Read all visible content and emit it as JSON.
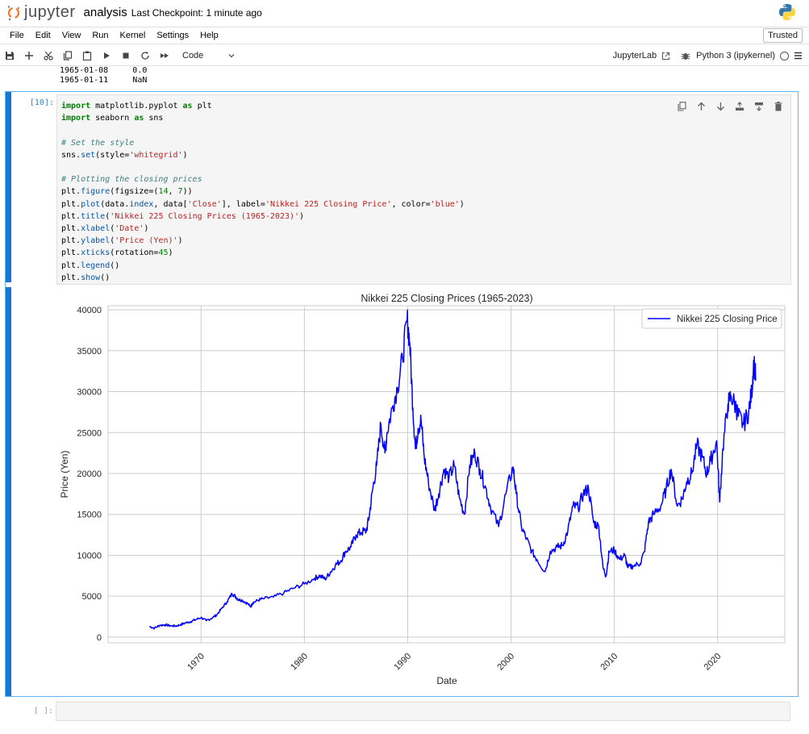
{
  "header": {
    "logo_text": "jupyter",
    "notebook_name": "analysis",
    "checkpoint": "Last Checkpoint: 1 minute ago",
    "python_logo": "python-logo-icon"
  },
  "menu": {
    "items": [
      "File",
      "Edit",
      "View",
      "Run",
      "Kernel",
      "Settings",
      "Help"
    ],
    "trusted": "Trusted"
  },
  "toolbar": {
    "icons": [
      "save-icon",
      "add-icon",
      "cut-icon",
      "copy-icon",
      "paste-icon",
      "run-icon",
      "stop-icon",
      "restart-icon",
      "fast-forward-icon"
    ],
    "cell_type": "Code",
    "jupyterlab": "JupyterLab",
    "kernel": "Python 3 (ipykernel)"
  },
  "prev_output": {
    "lines": [
      "1965-01-08     0.0",
      "1965-01-11     NaN"
    ]
  },
  "cell": {
    "prompt": "[10]:",
    "code_lines": [
      "import matplotlib.pyplot as plt",
      "import seaborn as sns",
      "",
      "# Set the style",
      "sns.set(style='whitegrid')",
      "",
      "# Plotting the closing prices",
      "plt.figure(figsize=(14, 7))",
      "plt.plot(data.index, data['Close'], label='Nikkei 225 Closing Price', color='blue')",
      "plt.title('Nikkei 225 Closing Prices (1965-2023)')",
      "plt.xlabel('Date')",
      "plt.ylabel('Price (Yen)')",
      "plt.xticks(rotation=45)",
      "plt.legend()",
      "plt.show()"
    ]
  },
  "empty_cell": {
    "prompt": "[ ]:"
  },
  "chart_data": {
    "type": "line",
    "title": "Nikkei 225 Closing Prices (1965-2023)",
    "xlabel": "Date",
    "ylabel": "Price (Yen)",
    "xlim": [
      1961,
      2026.5
    ],
    "ylim": [
      -700,
      40500
    ],
    "xticks": [
      1970,
      1980,
      1990,
      2000,
      2010,
      2020
    ],
    "yticks": [
      0,
      5000,
      10000,
      15000,
      20000,
      25000,
      30000,
      35000,
      40000
    ],
    "grid": true,
    "legend_position": "upper right",
    "color": "#0000ff",
    "series": [
      {
        "name": "Nikkei 225 Closing Price",
        "x": [
          1965.0,
          1965.5,
          1966.0,
          1966.5,
          1967.0,
          1967.5,
          1968.0,
          1968.5,
          1969.0,
          1969.5,
          1970.0,
          1970.5,
          1971.0,
          1971.5,
          1972.0,
          1972.5,
          1973.0,
          1973.3,
          1973.6,
          1974.0,
          1974.5,
          1974.8,
          1975.0,
          1975.5,
          1976.0,
          1977.0,
          1978.0,
          1979.0,
          1980.0,
          1981.0,
          1981.5,
          1982.0,
          1982.5,
          1983.0,
          1983.5,
          1984.0,
          1984.5,
          1985.0,
          1985.5,
          1986.0,
          1986.3,
          1986.6,
          1987.0,
          1987.4,
          1987.8,
          1988.0,
          1988.5,
          1989.0,
          1989.5,
          1989.95,
          1990.2,
          1990.5,
          1990.75,
          1991.0,
          1991.3,
          1991.6,
          1992.0,
          1992.6,
          1993.0,
          1993.5,
          1994.0,
          1994.5,
          1995.0,
          1995.5,
          1996.0,
          1996.5,
          1997.0,
          1997.5,
          1998.0,
          1998.8,
          1999.5,
          2000.2,
          2000.5,
          2001.0,
          2001.5,
          2002.0,
          2002.5,
          2003.3,
          2003.8,
          2004.5,
          2005.0,
          2005.5,
          2006.0,
          2006.5,
          2007.0,
          2007.5,
          2008.0,
          2008.5,
          2008.9,
          2009.2,
          2009.5,
          2010.0,
          2010.5,
          2011.0,
          2011.3,
          2011.8,
          2012.5,
          2012.9,
          2013.3,
          2013.8,
          2014.5,
          2015.0,
          2015.5,
          2016.1,
          2016.6,
          2017.0,
          2017.5,
          2018.0,
          2018.5,
          2018.95,
          2019.3,
          2019.9,
          2020.2,
          2020.5,
          2021.0,
          2021.3,
          2021.8,
          2022.0,
          2022.5,
          2023.0,
          2023.3,
          2023.5,
          2023.7
        ],
        "values": [
          1300,
          1100,
          1450,
          1500,
          1400,
          1350,
          1500,
          1750,
          1900,
          2150,
          2400,
          2000,
          2300,
          2700,
          3500,
          4300,
          5300,
          5000,
          4600,
          4500,
          4100,
          3700,
          4200,
          4500,
          4700,
          4900,
          5400,
          6000,
          6500,
          7200,
          7500,
          7100,
          7900,
          8800,
          9300,
          10500,
          11000,
          12500,
          12800,
          13000,
          15000,
          18000,
          21000,
          26000,
          22500,
          25000,
          28000,
          30500,
          34000,
          38900,
          36000,
          28000,
          23000,
          25500,
          26500,
          22000,
          19000,
          15500,
          17500,
          20500,
          19500,
          21000,
          17000,
          15000,
          21000,
          22500,
          20500,
          18500,
          16000,
          13500,
          17500,
          20800,
          17500,
          13500,
          12000,
          10500,
          9500,
          8000,
          10500,
          11000,
          11200,
          13000,
          16000,
          15800,
          17500,
          18200,
          14000,
          13500,
          8500,
          7500,
          10500,
          10600,
          9500,
          10000,
          8500,
          8700,
          9000,
          10400,
          14000,
          15000,
          16000,
          18000,
          20500,
          16000,
          17000,
          19000,
          20000,
          23500,
          22000,
          20000,
          21500,
          24000,
          16500,
          23000,
          28500,
          29500,
          28000,
          27000,
          26000,
          27500,
          30000,
          33700,
          31500
        ]
      }
    ]
  }
}
